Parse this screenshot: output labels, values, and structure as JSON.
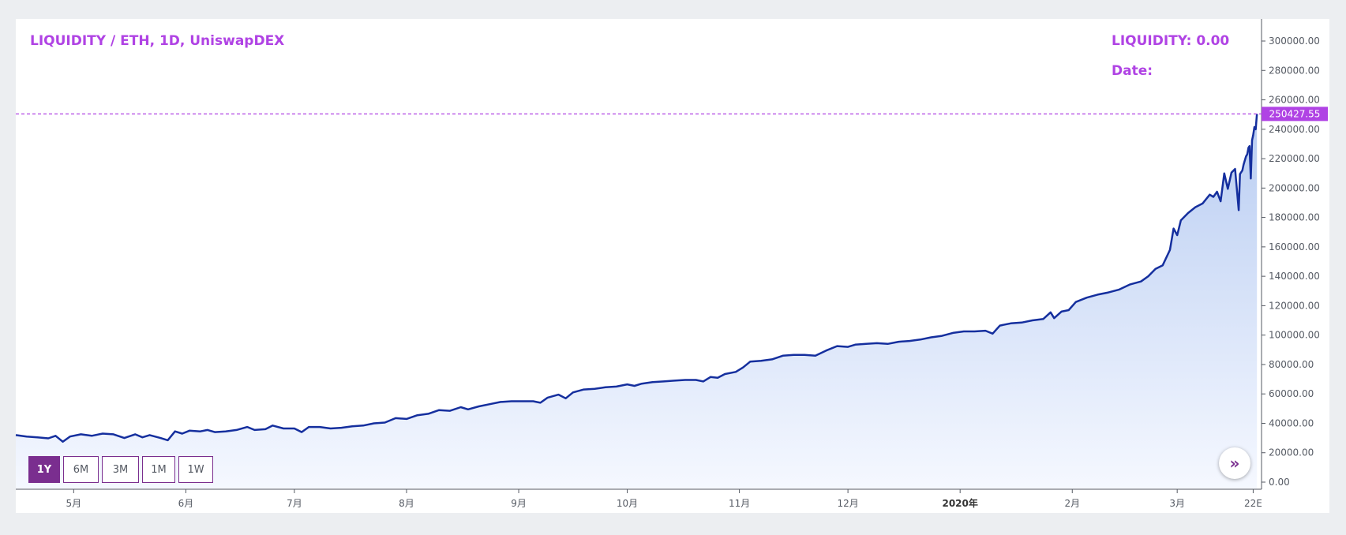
{
  "header": {
    "title": "LIQUIDITY / ETH, 1D, UniswapDEX",
    "value_label": "LIQUIDITY: 0.00",
    "date_label": "Date:"
  },
  "price_tag": "250427.55",
  "range_buttons": [
    "1Y",
    "6M",
    "3M",
    "1M",
    "1W"
  ],
  "active_range": "1Y",
  "scroll_icon": "double-chevron-right-icon",
  "colors": {
    "line": "#152f9e",
    "fill_top": "#b9cdf2",
    "fill_bottom": "#f5f8ff",
    "accent": "#b043e4",
    "button": "#7a2e8f"
  },
  "chart_data": {
    "type": "area",
    "title": "LIQUIDITY / ETH, 1D, UniswapDEX",
    "xlabel": "",
    "ylabel": "",
    "ylim": [
      0,
      310000
    ],
    "yticks": [
      0,
      20000,
      40000,
      60000,
      80000,
      100000,
      120000,
      140000,
      160000,
      180000,
      200000,
      220000,
      240000,
      260000,
      280000,
      300000
    ],
    "ytick_labels": [
      "0.00",
      "20000.00",
      "40000.00",
      "60000.00",
      "80000.00",
      "100000.00",
      "120000.00",
      "140000.00",
      "160000.00",
      "180000.00",
      "200000.00",
      "220000.00",
      "240000.00",
      "260000.00",
      "280000.00",
      "300000.00"
    ],
    "xticks": [
      {
        "label": "5月",
        "date": "2019-05-01"
      },
      {
        "label": "6月",
        "date": "2019-06-01"
      },
      {
        "label": "7月",
        "date": "2019-07-01"
      },
      {
        "label": "8月",
        "date": "2019-08-01"
      },
      {
        "label": "9月",
        "date": "2019-09-01"
      },
      {
        "label": "10月",
        "date": "2019-10-01"
      },
      {
        "label": "11月",
        "date": "2019-11-01"
      },
      {
        "label": "12月",
        "date": "2019-12-01"
      },
      {
        "label": "2020年",
        "date": "2020-01-01",
        "bold": true
      },
      {
        "label": "2月",
        "date": "2020-02-01"
      },
      {
        "label": "3月",
        "date": "2020-03-01"
      },
      {
        "label": "22E",
        "date": "2020-03-22"
      }
    ],
    "x_range": [
      "2019-04-15",
      "2020-03-23"
    ],
    "last_value": 250427.55,
    "grid": false,
    "points": [
      [
        "2019-04-15",
        32000
      ],
      [
        "2019-04-18",
        31000
      ],
      [
        "2019-04-21",
        30500
      ],
      [
        "2019-04-24",
        29800
      ],
      [
        "2019-04-26",
        31500
      ],
      [
        "2019-04-28",
        27500
      ],
      [
        "2019-04-30",
        31000
      ],
      [
        "2019-05-03",
        32500
      ],
      [
        "2019-05-06",
        31500
      ],
      [
        "2019-05-09",
        33000
      ],
      [
        "2019-05-12",
        32500
      ],
      [
        "2019-05-15",
        30000
      ],
      [
        "2019-05-18",
        32500
      ],
      [
        "2019-05-20",
        30500
      ],
      [
        "2019-05-22",
        32000
      ],
      [
        "2019-05-25",
        30000
      ],
      [
        "2019-05-27",
        28500
      ],
      [
        "2019-05-29",
        34500
      ],
      [
        "2019-05-31",
        33000
      ],
      [
        "2019-06-02",
        35000
      ],
      [
        "2019-06-05",
        34500
      ],
      [
        "2019-06-07",
        35500
      ],
      [
        "2019-06-09",
        34000
      ],
      [
        "2019-06-12",
        34500
      ],
      [
        "2019-06-15",
        35500
      ],
      [
        "2019-06-18",
        37500
      ],
      [
        "2019-06-20",
        35500
      ],
      [
        "2019-06-23",
        36000
      ],
      [
        "2019-06-25",
        38500
      ],
      [
        "2019-06-28",
        36500
      ],
      [
        "2019-07-01",
        36500
      ],
      [
        "2019-07-03",
        34000
      ],
      [
        "2019-07-05",
        37500
      ],
      [
        "2019-07-08",
        37500
      ],
      [
        "2019-07-11",
        36500
      ],
      [
        "2019-07-14",
        37000
      ],
      [
        "2019-07-17",
        38000
      ],
      [
        "2019-07-20",
        38500
      ],
      [
        "2019-07-23",
        40000
      ],
      [
        "2019-07-26",
        40500
      ],
      [
        "2019-07-29",
        43500
      ],
      [
        "2019-08-01",
        43000
      ],
      [
        "2019-08-04",
        45500
      ],
      [
        "2019-08-07",
        46500
      ],
      [
        "2019-08-10",
        49000
      ],
      [
        "2019-08-13",
        48500
      ],
      [
        "2019-08-16",
        51000
      ],
      [
        "2019-08-18",
        49500
      ],
      [
        "2019-08-21",
        51500
      ],
      [
        "2019-08-24",
        53000
      ],
      [
        "2019-08-27",
        54500
      ],
      [
        "2019-08-30",
        55000
      ],
      [
        "2019-09-02",
        55000
      ],
      [
        "2019-09-05",
        55000
      ],
      [
        "2019-09-07",
        54000
      ],
      [
        "2019-09-09",
        57500
      ],
      [
        "2019-09-12",
        59500
      ],
      [
        "2019-09-14",
        57000
      ],
      [
        "2019-09-16",
        61000
      ],
      [
        "2019-09-19",
        63000
      ],
      [
        "2019-09-22",
        63500
      ],
      [
        "2019-09-25",
        64500
      ],
      [
        "2019-09-28",
        65000
      ],
      [
        "2019-10-01",
        66500
      ],
      [
        "2019-10-03",
        65500
      ],
      [
        "2019-10-05",
        67000
      ],
      [
        "2019-10-08",
        68000
      ],
      [
        "2019-10-11",
        68500
      ],
      [
        "2019-10-14",
        69000
      ],
      [
        "2019-10-17",
        69500
      ],
      [
        "2019-10-20",
        69500
      ],
      [
        "2019-10-22",
        68500
      ],
      [
        "2019-10-24",
        71500
      ],
      [
        "2019-10-26",
        71000
      ],
      [
        "2019-10-28",
        73500
      ],
      [
        "2019-10-31",
        75000
      ],
      [
        "2019-11-02",
        78000
      ],
      [
        "2019-11-04",
        82000
      ],
      [
        "2019-11-07",
        82500
      ],
      [
        "2019-11-10",
        83500
      ],
      [
        "2019-11-13",
        86000
      ],
      [
        "2019-11-16",
        86500
      ],
      [
        "2019-11-19",
        86500
      ],
      [
        "2019-11-22",
        86000
      ],
      [
        "2019-11-25",
        89500
      ],
      [
        "2019-11-28",
        92500
      ],
      [
        "2019-12-01",
        92000
      ],
      [
        "2019-12-03",
        93500
      ],
      [
        "2019-12-06",
        94000
      ],
      [
        "2019-12-09",
        94500
      ],
      [
        "2019-12-12",
        94000
      ],
      [
        "2019-12-15",
        95500
      ],
      [
        "2019-12-18",
        96000
      ],
      [
        "2019-12-21",
        97000
      ],
      [
        "2019-12-24",
        98500
      ],
      [
        "2019-12-27",
        99500
      ],
      [
        "2019-12-30",
        101500
      ],
      [
        "2020-01-02",
        102500
      ],
      [
        "2020-01-05",
        102500
      ],
      [
        "2020-01-08",
        103000
      ],
      [
        "2020-01-10",
        101000
      ],
      [
        "2020-01-12",
        106500
      ],
      [
        "2020-01-15",
        108000
      ],
      [
        "2020-01-18",
        108500
      ],
      [
        "2020-01-21",
        110000
      ],
      [
        "2020-01-24",
        111000
      ],
      [
        "2020-01-26",
        115500
      ],
      [
        "2020-01-27",
        111500
      ],
      [
        "2020-01-29",
        116000
      ],
      [
        "2020-01-31",
        117000
      ],
      [
        "2020-02-02",
        122500
      ],
      [
        "2020-02-05",
        125500
      ],
      [
        "2020-02-08",
        127500
      ],
      [
        "2020-02-11",
        129000
      ],
      [
        "2020-02-14",
        131000
      ],
      [
        "2020-02-17",
        134500
      ],
      [
        "2020-02-20",
        136500
      ],
      [
        "2020-02-22",
        140000
      ],
      [
        "2020-02-24",
        145000
      ],
      [
        "2020-02-26",
        147500
      ],
      [
        "2020-02-28",
        158000
      ],
      [
        "2020-02-29",
        172500
      ],
      [
        "2020-03-01",
        168000
      ],
      [
        "2020-03-02",
        178000
      ],
      [
        "2020-03-04",
        183000
      ],
      [
        "2020-03-06",
        187000
      ],
      [
        "2020-03-08",
        189500
      ],
      [
        "2020-03-10",
        195500
      ],
      [
        "2020-03-11",
        194000
      ],
      [
        "2020-03-12",
        197500
      ],
      [
        "2020-03-13",
        191000
      ],
      [
        "2020-03-14",
        210000
      ],
      [
        "2020-03-15",
        199500
      ],
      [
        "2020-03-16",
        210500
      ],
      [
        "2020-03-17",
        213000
      ],
      [
        "2020-03-18",
        185000
      ],
      [
        "2020-03-18",
        209500
      ],
      [
        "2020-03-19",
        212000
      ],
      [
        "2020-03-19",
        216000
      ],
      [
        "2020-03-20",
        221500
      ],
      [
        "2020-03-20",
        223000
      ],
      [
        "2020-03-20",
        227500
      ],
      [
        "2020-03-21",
        228500
      ],
      [
        "2020-03-21",
        206500
      ],
      [
        "2020-03-21",
        232500
      ],
      [
        "2020-03-22",
        236000
      ],
      [
        "2020-03-22",
        241500
      ],
      [
        "2020-03-22",
        240000
      ],
      [
        "2020-03-22",
        250427.55
      ]
    ]
  }
}
